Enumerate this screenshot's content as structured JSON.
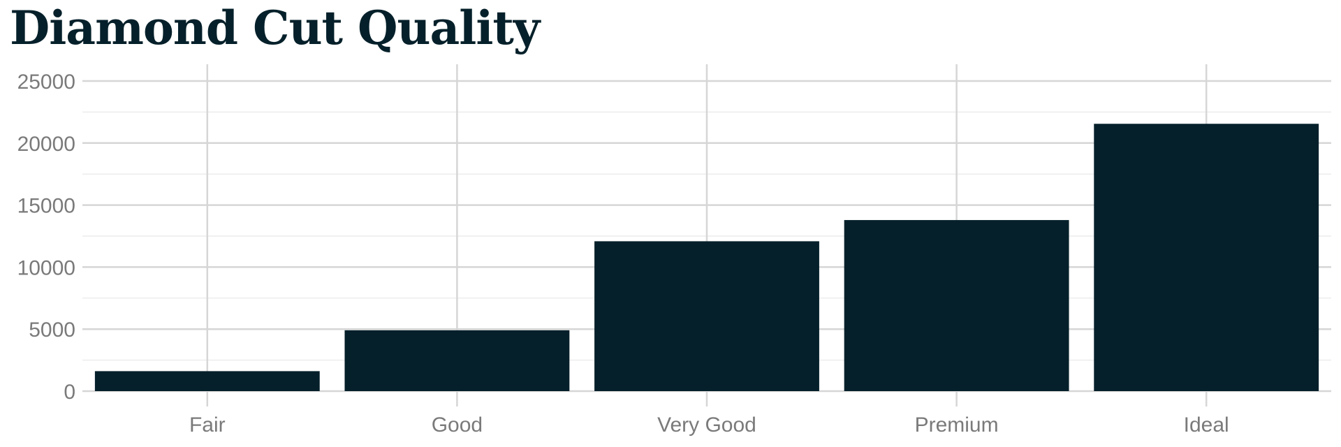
{
  "chart_data": {
    "type": "bar",
    "title": "Diamond Cut Quality",
    "xlabel": "",
    "ylabel": "",
    "categories": [
      "Fair",
      "Good",
      "Very Good",
      "Premium",
      "Ideal"
    ],
    "values": [
      1610,
      4906,
      12082,
      13791,
      21551
    ],
    "ylim": [
      0,
      25000
    ],
    "yticks": [
      0,
      5000,
      10000,
      15000,
      20000,
      25000
    ],
    "grid": true,
    "legend": "none",
    "colors": {
      "bar": "#05202a",
      "major_grid": "#d6d6d6",
      "minor_grid": "#ececec",
      "tick_text": "#7a7a7a",
      "title": "#05202a"
    }
  }
}
